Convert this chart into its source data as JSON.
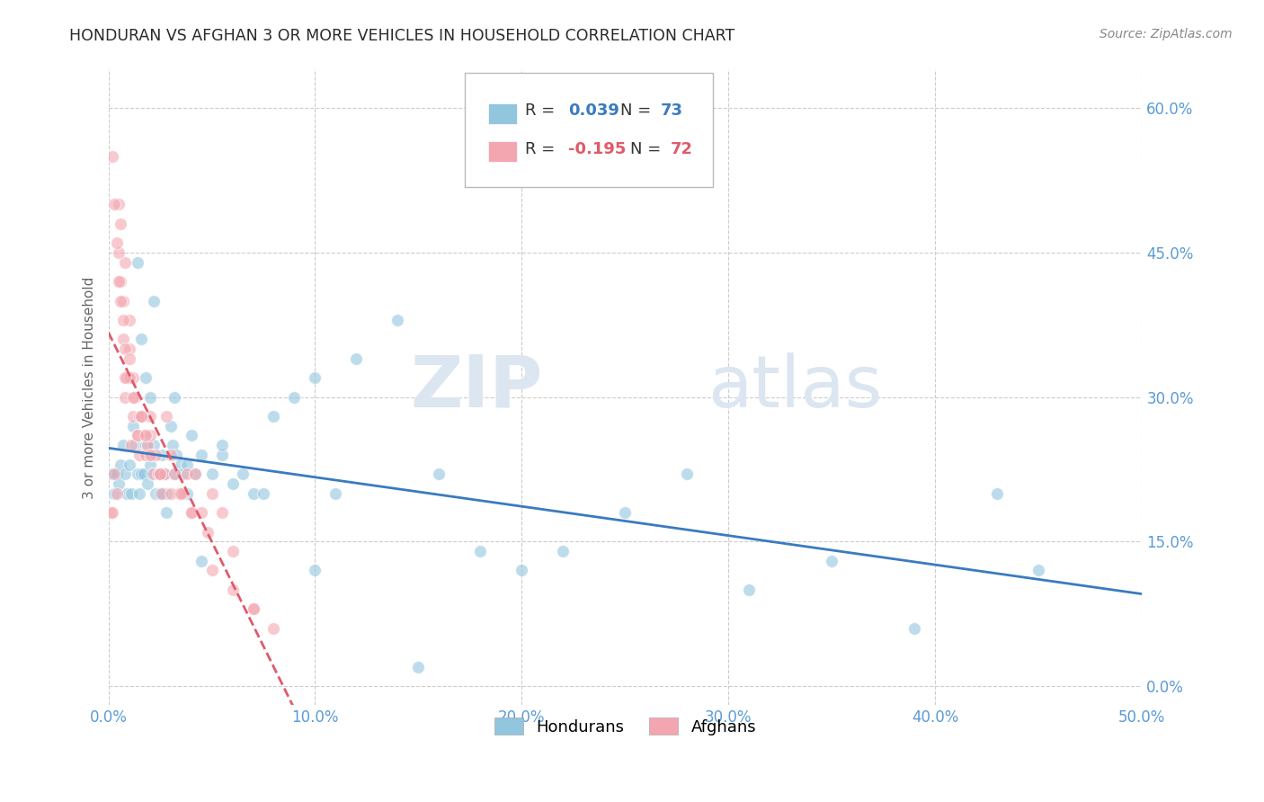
{
  "title": "HONDURAN VS AFGHAN 3 OR MORE VEHICLES IN HOUSEHOLD CORRELATION CHART",
  "source": "Source: ZipAtlas.com",
  "ylabel_label": "3 or more Vehicles in Household",
  "xmin": 0.0,
  "xmax": 0.5,
  "ymin": -0.02,
  "ymax": 0.64,
  "blue_color": "#92c5de",
  "pink_color": "#f4a6b0",
  "blue_line_color": "#3a7bbf",
  "pink_line_color": "#e05a6a",
  "grid_color": "#cccccc",
  "watermark_zip": "ZIP",
  "watermark_atlas": "atlas",
  "watermark_color": "#dce6f0",
  "axis_label_color": "#5b9bd5",
  "honduran_x": [
    0.001,
    0.002,
    0.003,
    0.004,
    0.005,
    0.006,
    0.007,
    0.008,
    0.009,
    0.01,
    0.011,
    0.012,
    0.013,
    0.014,
    0.015,
    0.016,
    0.017,
    0.018,
    0.019,
    0.02,
    0.021,
    0.022,
    0.023,
    0.025,
    0.026,
    0.027,
    0.028,
    0.03,
    0.031,
    0.032,
    0.033,
    0.035,
    0.036,
    0.038,
    0.04,
    0.042,
    0.045,
    0.05,
    0.055,
    0.06,
    0.065,
    0.07,
    0.075,
    0.08,
    0.09,
    0.1,
    0.11,
    0.12,
    0.14,
    0.16,
    0.18,
    0.2,
    0.22,
    0.25,
    0.28,
    0.31,
    0.35,
    0.39,
    0.43,
    0.45,
    0.014,
    0.016,
    0.018,
    0.02,
    0.022,
    0.025,
    0.028,
    0.032,
    0.038,
    0.045,
    0.055,
    0.1,
    0.15
  ],
  "honduran_y": [
    0.22,
    0.22,
    0.2,
    0.22,
    0.21,
    0.23,
    0.25,
    0.22,
    0.2,
    0.23,
    0.2,
    0.27,
    0.25,
    0.22,
    0.2,
    0.22,
    0.22,
    0.25,
    0.21,
    0.23,
    0.22,
    0.25,
    0.2,
    0.22,
    0.24,
    0.22,
    0.2,
    0.27,
    0.25,
    0.22,
    0.24,
    0.23,
    0.22,
    0.2,
    0.26,
    0.22,
    0.24,
    0.22,
    0.24,
    0.21,
    0.22,
    0.2,
    0.2,
    0.28,
    0.3,
    0.32,
    0.2,
    0.34,
    0.38,
    0.22,
    0.14,
    0.12,
    0.14,
    0.18,
    0.22,
    0.1,
    0.13,
    0.06,
    0.2,
    0.12,
    0.44,
    0.36,
    0.32,
    0.3,
    0.4,
    0.2,
    0.18,
    0.3,
    0.23,
    0.13,
    0.25,
    0.12,
    0.02
  ],
  "afghan_x": [
    0.001,
    0.002,
    0.003,
    0.004,
    0.005,
    0.006,
    0.007,
    0.007,
    0.008,
    0.008,
    0.009,
    0.01,
    0.01,
    0.011,
    0.012,
    0.012,
    0.013,
    0.014,
    0.015,
    0.015,
    0.016,
    0.017,
    0.018,
    0.019,
    0.02,
    0.02,
    0.021,
    0.022,
    0.023,
    0.024,
    0.025,
    0.026,
    0.027,
    0.028,
    0.03,
    0.032,
    0.034,
    0.036,
    0.038,
    0.04,
    0.042,
    0.045,
    0.048,
    0.05,
    0.055,
    0.06,
    0.07,
    0.08,
    0.005,
    0.006,
    0.008,
    0.01,
    0.012,
    0.014,
    0.016,
    0.018,
    0.02,
    0.025,
    0.03,
    0.035,
    0.04,
    0.05,
    0.06,
    0.07,
    0.002,
    0.003,
    0.004,
    0.005,
    0.006,
    0.007,
    0.008,
    0.01
  ],
  "afghan_y": [
    0.18,
    0.18,
    0.22,
    0.2,
    0.5,
    0.42,
    0.36,
    0.4,
    0.3,
    0.44,
    0.32,
    0.35,
    0.38,
    0.25,
    0.28,
    0.32,
    0.3,
    0.26,
    0.24,
    0.28,
    0.28,
    0.26,
    0.24,
    0.25,
    0.28,
    0.26,
    0.24,
    0.22,
    0.24,
    0.22,
    0.22,
    0.2,
    0.22,
    0.28,
    0.24,
    0.22,
    0.2,
    0.2,
    0.22,
    0.18,
    0.22,
    0.18,
    0.16,
    0.2,
    0.18,
    0.1,
    0.08,
    0.06,
    0.45,
    0.4,
    0.35,
    0.32,
    0.3,
    0.26,
    0.28,
    0.26,
    0.24,
    0.22,
    0.2,
    0.2,
    0.18,
    0.12,
    0.14,
    0.08,
    0.55,
    0.5,
    0.46,
    0.42,
    0.48,
    0.38,
    0.32,
    0.34
  ]
}
